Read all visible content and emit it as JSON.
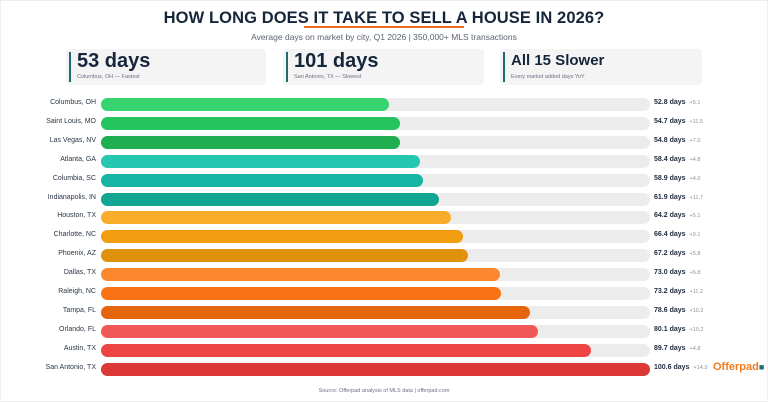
{
  "header": {
    "title": "HOW LONG DOES IT TAKE TO SELL A HOUSE IN 2026?",
    "subtitle": "Average days on market by city, Q1 2026 | 350,000+ MLS transactions"
  },
  "cards": [
    {
      "big": "53 days",
      "small": "Columbus, OH — Fastest"
    },
    {
      "big": "101 days",
      "small": "San Antonio, TX — Slowest"
    },
    {
      "big": "All 15 Slower",
      "small": "Every market added days YoY"
    }
  ],
  "rows": [
    {
      "label": "Columbus, OH",
      "value": "52.8 days",
      "delta": "+5.1",
      "color": "#37d36f",
      "pct": 52.5
    },
    {
      "label": "Saint Louis, MO",
      "value": "54.7 days",
      "delta": "+11.5",
      "color": "#24c45e",
      "pct": 54.4
    },
    {
      "label": "Las Vegas, NV",
      "value": "54.8 days",
      "delta": "+7.0",
      "color": "#1fae50",
      "pct": 54.5
    },
    {
      "label": "Atlanta, GA",
      "value": "58.4 days",
      "delta": "+4.8",
      "color": "#26c7b0",
      "pct": 58.1
    },
    {
      "label": "Columbia, SC",
      "value": "58.9 days",
      "delta": "+4.0",
      "color": "#16b4a2",
      "pct": 58.6
    },
    {
      "label": "Indianapolis, IN",
      "value": "61.9 days",
      "delta": "+11.7",
      "color": "#12a593",
      "pct": 61.5
    },
    {
      "label": "Houston, TX",
      "value": "64.2 days",
      "delta": "+5.1",
      "color": "#f9ac2a",
      "pct": 63.8
    },
    {
      "label": "Charlotte, NC",
      "value": "66.4 days",
      "delta": "+9.1",
      "color": "#f29d0f",
      "pct": 66.0
    },
    {
      "label": "Phoenix, AZ",
      "value": "67.2 days",
      "delta": "+5.8",
      "color": "#e0920c",
      "pct": 66.8
    },
    {
      "label": "Dallas, TX",
      "value": "73.0 days",
      "delta": "+6.8",
      "color": "#fb872e",
      "pct": 72.6
    },
    {
      "label": "Raleigh, NC",
      "value": "73.2 days",
      "delta": "+11.2",
      "color": "#f97316",
      "pct": 72.8
    },
    {
      "label": "Tampa, FL",
      "value": "78.6 days",
      "delta": "+10.2",
      "color": "#e5650d",
      "pct": 78.1
    },
    {
      "label": "Orlando, FL",
      "value": "80.1 days",
      "delta": "+10.2",
      "color": "#f25858",
      "pct": 79.6
    },
    {
      "label": "Austin, TX",
      "value": "89.7 days",
      "delta": "+4.8",
      "color": "#ef4444",
      "pct": 89.2
    },
    {
      "label": "San Antonio, TX",
      "value": "100.6 days",
      "delta": "+14.3",
      "color": "#dc3838",
      "pct": 100
    }
  ],
  "logo": {
    "text": "Offerpad",
    "dot": "■"
  },
  "footer": {
    "source": "Source: Offerpad analysis of MLS data  |  offerpad.com"
  },
  "chart_data": {
    "type": "bar",
    "orientation": "horizontal",
    "title": "HOW LONG DOES IT TAKE TO SELL A HOUSE IN 2026?",
    "subtitle": "Average days on market by city, Q1 2026 | 350,000+ MLS transactions",
    "xlabel": "",
    "ylabel": "",
    "xlim": [
      0,
      100.6
    ],
    "grid": false,
    "legend": null,
    "categories": [
      "Columbus, OH",
      "Saint Louis, MO",
      "Las Vegas, NV",
      "Atlanta, GA",
      "Columbia, SC",
      "Indianapolis, IN",
      "Houston, TX",
      "Charlotte, NC",
      "Phoenix, AZ",
      "Dallas, TX",
      "Raleigh, NC",
      "Tampa, FL",
      "Orlando, FL",
      "Austin, TX",
      "San Antonio, TX"
    ],
    "series": [
      {
        "name": "Days on market",
        "values": [
          52.8,
          54.7,
          54.8,
          58.4,
          58.9,
          61.9,
          64.2,
          66.4,
          67.2,
          73.0,
          73.2,
          78.6,
          80.1,
          89.7,
          100.6
        ]
      },
      {
        "name": "YoY change (days)",
        "values": [
          5.1,
          11.5,
          7.0,
          4.8,
          4.0,
          11.7,
          5.1,
          9.1,
          5.8,
          6.8,
          11.2,
          10.2,
          10.2,
          4.8,
          14.3
        ]
      }
    ],
    "annotations": [
      "53 days — Columbus, OH — Fastest",
      "101 days — San Antonio, TX — Slowest",
      "All 15 Slower — Every market added days YoY"
    ],
    "source": "Source: Offerpad analysis of MLS data | offerpad.com"
  }
}
